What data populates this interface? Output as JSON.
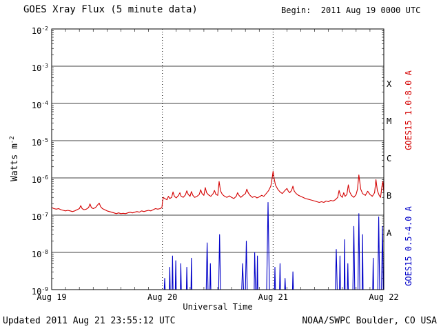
{
  "header": {
    "title": "GOES Xray Flux (5 minute data)",
    "begin": "Begin:  2011 Aug 19 0000 UTC"
  },
  "footer": {
    "updated": "Updated 2011 Aug 21 23:55:12 UTC",
    "credit": "NOAA/SWPC Boulder, CO USA"
  },
  "axes": {
    "y_title_text": "Watts m",
    "y_title_sup": "-2",
    "x_title": "Universal Time"
  },
  "chart_data": {
    "type": "line",
    "title": "GOES Xray Flux (5 minute data)",
    "xlabel": "Universal Time",
    "ylabel": "Watts m^-2",
    "x_range_hours": [
      0,
      72
    ],
    "x_ticks": [
      {
        "hour": 0,
        "label": "Aug 19"
      },
      {
        "hour": 24,
        "label": "Aug 20"
      },
      {
        "hour": 48,
        "label": "Aug 21"
      },
      {
        "hour": 72,
        "label": "Aug 22"
      }
    ],
    "y_log_range": [
      -9,
      -2
    ],
    "y_tick_exponents": [
      -2,
      -3,
      -4,
      -5,
      -6,
      -7,
      -8,
      -9
    ],
    "day_boundaries_hours": [
      24,
      48
    ],
    "flare_classes": [
      {
        "label": "X",
        "center_exponent": -3.5
      },
      {
        "label": "M",
        "center_exponent": -4.5
      },
      {
        "label": "C",
        "center_exponent": -5.5
      },
      {
        "label": "B",
        "center_exponent": -6.5
      },
      {
        "label": "A",
        "center_exponent": -7.5
      }
    ],
    "colors": {
      "long_channel": "#d40000",
      "short_channel": "#0000c8",
      "grid": "#000000"
    },
    "legend_position": "right-rotated",
    "grid": true,
    "series": [
      {
        "name": "GOES15 1.0-8.0 A",
        "color": "#d40000",
        "points": [
          [
            0,
            1.6e-07
          ],
          [
            0.5,
            1.5e-07
          ],
          [
            1,
            1.45e-07
          ],
          [
            1.5,
            1.5e-07
          ],
          [
            2,
            1.4e-07
          ],
          [
            2.5,
            1.35e-07
          ],
          [
            3,
            1.3e-07
          ],
          [
            3.5,
            1.35e-07
          ],
          [
            4,
            1.3e-07
          ],
          [
            4.5,
            1.25e-07
          ],
          [
            5,
            1.3e-07
          ],
          [
            5.5,
            1.4e-07
          ],
          [
            6,
            1.5e-07
          ],
          [
            6.3,
            1.8e-07
          ],
          [
            6.6,
            1.5e-07
          ],
          [
            7,
            1.4e-07
          ],
          [
            7.5,
            1.45e-07
          ],
          [
            8,
            1.6e-07
          ],
          [
            8.3,
            2e-07
          ],
          [
            8.6,
            1.6e-07
          ],
          [
            9,
            1.5e-07
          ],
          [
            9.5,
            1.6e-07
          ],
          [
            10,
            1.9e-07
          ],
          [
            10.3,
            2.1e-07
          ],
          [
            10.6,
            1.7e-07
          ],
          [
            11,
            1.5e-07
          ],
          [
            11.5,
            1.4e-07
          ],
          [
            12,
            1.3e-07
          ],
          [
            12.5,
            1.25e-07
          ],
          [
            13,
            1.2e-07
          ],
          [
            13.5,
            1.15e-07
          ],
          [
            14,
            1.1e-07
          ],
          [
            14.5,
            1.15e-07
          ],
          [
            15,
            1.1e-07
          ],
          [
            15.5,
            1.12e-07
          ],
          [
            16,
            1.1e-07
          ],
          [
            16.5,
            1.15e-07
          ],
          [
            17,
            1.2e-07
          ],
          [
            17.5,
            1.15e-07
          ],
          [
            18,
            1.2e-07
          ],
          [
            18.5,
            1.25e-07
          ],
          [
            19,
            1.2e-07
          ],
          [
            19.5,
            1.3e-07
          ],
          [
            20,
            1.25e-07
          ],
          [
            20.5,
            1.3e-07
          ],
          [
            21,
            1.35e-07
          ],
          [
            21.5,
            1.3e-07
          ],
          [
            22,
            1.4e-07
          ],
          [
            22.5,
            1.5e-07
          ],
          [
            23,
            1.45e-07
          ],
          [
            23.5,
            1.5e-07
          ],
          [
            23.9,
            1.6e-07
          ],
          [
            24,
            2.2e-07
          ],
          [
            24.2,
            3e-07
          ],
          [
            24.5,
            2.8e-07
          ],
          [
            25,
            2.6e-07
          ],
          [
            25.3,
            3.2e-07
          ],
          [
            25.6,
            2.8e-07
          ],
          [
            26,
            3e-07
          ],
          [
            26.3,
            4.2e-07
          ],
          [
            26.6,
            3.2e-07
          ],
          [
            27,
            2.9e-07
          ],
          [
            27.5,
            3.4e-07
          ],
          [
            27.8,
            4e-07
          ],
          [
            28,
            3.3e-07
          ],
          [
            28.5,
            3e-07
          ],
          [
            29,
            3.5e-07
          ],
          [
            29.3,
            4.5e-07
          ],
          [
            29.6,
            3.6e-07
          ],
          [
            30,
            3.2e-07
          ],
          [
            30.3,
            4.3e-07
          ],
          [
            30.6,
            3.4e-07
          ],
          [
            31,
            3e-07
          ],
          [
            31.5,
            3.2e-07
          ],
          [
            32,
            3.6e-07
          ],
          [
            32.3,
            4.8e-07
          ],
          [
            32.6,
            3.8e-07
          ],
          [
            33,
            3.4e-07
          ],
          [
            33.3,
            5.5e-07
          ],
          [
            33.6,
            4e-07
          ],
          [
            34,
            3.5e-07
          ],
          [
            34.5,
            3.2e-07
          ],
          [
            35,
            3.8e-07
          ],
          [
            35.3,
            4.6e-07
          ],
          [
            35.6,
            3.6e-07
          ],
          [
            36,
            3.4e-07
          ],
          [
            36.3,
            8e-07
          ],
          [
            36.6,
            4.5e-07
          ],
          [
            37,
            3.6e-07
          ],
          [
            37.5,
            3.2e-07
          ],
          [
            38,
            3e-07
          ],
          [
            38.5,
            3.3e-07
          ],
          [
            39,
            3e-07
          ],
          [
            39.5,
            2.8e-07
          ],
          [
            40,
            3.2e-07
          ],
          [
            40.3,
            4e-07
          ],
          [
            40.6,
            3.4e-07
          ],
          [
            41,
            3e-07
          ],
          [
            41.5,
            3.4e-07
          ],
          [
            42,
            3.8e-07
          ],
          [
            42.3,
            5e-07
          ],
          [
            42.6,
            4e-07
          ],
          [
            43,
            3.4e-07
          ],
          [
            43.5,
            3e-07
          ],
          [
            44,
            3.2e-07
          ],
          [
            44.5,
            2.9e-07
          ],
          [
            45,
            3.1e-07
          ],
          [
            45.5,
            3.4e-07
          ],
          [
            46,
            3.2e-07
          ],
          [
            46.5,
            3.8e-07
          ],
          [
            47,
            4.5e-07
          ],
          [
            47.5,
            6e-07
          ],
          [
            47.8,
            1e-06
          ],
          [
            48,
            1.5e-06
          ],
          [
            48.2,
            1e-06
          ],
          [
            48.5,
            6.5e-07
          ],
          [
            49,
            5e-07
          ],
          [
            49.5,
            4.2e-07
          ],
          [
            50,
            3.8e-07
          ],
          [
            50.5,
            4.5e-07
          ],
          [
            51,
            5.2e-07
          ],
          [
            51.3,
            4.4e-07
          ],
          [
            51.6,
            4e-07
          ],
          [
            52,
            4.6e-07
          ],
          [
            52.3,
            6e-07
          ],
          [
            52.6,
            4.4e-07
          ],
          [
            53,
            3.8e-07
          ],
          [
            53.5,
            3.4e-07
          ],
          [
            54,
            3.2e-07
          ],
          [
            54.5,
            3e-07
          ],
          [
            55,
            2.8e-07
          ],
          [
            55.5,
            2.7e-07
          ],
          [
            56,
            2.6e-07
          ],
          [
            56.5,
            2.5e-07
          ],
          [
            57,
            2.4e-07
          ],
          [
            57.5,
            2.3e-07
          ],
          [
            58,
            2.2e-07
          ],
          [
            58.5,
            2.3e-07
          ],
          [
            59,
            2.2e-07
          ],
          [
            59.5,
            2.4e-07
          ],
          [
            60,
            2.3e-07
          ],
          [
            60.5,
            2.5e-07
          ],
          [
            61,
            2.4e-07
          ],
          [
            61.5,
            2.6e-07
          ],
          [
            62,
            3e-07
          ],
          [
            62.3,
            4.6e-07
          ],
          [
            62.6,
            3.4e-07
          ],
          [
            63,
            3e-07
          ],
          [
            63.3,
            4e-07
          ],
          [
            63.6,
            3.2e-07
          ],
          [
            64,
            3.6e-07
          ],
          [
            64.3,
            6.5e-07
          ],
          [
            64.6,
            4.2e-07
          ],
          [
            65,
            3.4e-07
          ],
          [
            65.5,
            3e-07
          ],
          [
            66,
            3.6e-07
          ],
          [
            66.3,
            5e-07
          ],
          [
            66.6,
            1.2e-06
          ],
          [
            67,
            5e-07
          ],
          [
            67.4,
            3.8e-07
          ],
          [
            68,
            3.4e-07
          ],
          [
            68.5,
            4.4e-07
          ],
          [
            69,
            3.6e-07
          ],
          [
            69.5,
            3.2e-07
          ],
          [
            70,
            4e-07
          ],
          [
            70.3,
            9e-07
          ],
          [
            70.6,
            4.6e-07
          ],
          [
            71,
            3.4e-07
          ],
          [
            71.3,
            3e-07
          ],
          [
            71.6,
            6e-07
          ],
          [
            71.8,
            8e-07
          ],
          [
            72,
            4e-07
          ]
        ]
      },
      {
        "name": "GOES15 0.5-4.0 A",
        "color": "#0000c8",
        "points": [
          [
            24,
            9e-10
          ],
          [
            24.4,
            9e-10
          ],
          [
            24.5,
            2e-09
          ],
          [
            24.6,
            9e-10
          ],
          [
            25.5,
            9e-10
          ],
          [
            25.6,
            4e-09
          ],
          [
            25.7,
            9e-10
          ],
          [
            26.1,
            9e-10
          ],
          [
            26.2,
            8e-09
          ],
          [
            26.3,
            9e-10
          ],
          [
            26.8,
            9e-10
          ],
          [
            26.9,
            6e-09
          ],
          [
            27.0,
            9e-10
          ],
          [
            27.9,
            9e-10
          ],
          [
            28.0,
            5e-09
          ],
          [
            28.1,
            9e-10
          ],
          [
            29.2,
            9e-10
          ],
          [
            29.3,
            4e-09
          ],
          [
            29.4,
            9e-10
          ],
          [
            30.2,
            9e-10
          ],
          [
            30.3,
            7e-09
          ],
          [
            30.4,
            9e-10
          ],
          [
            31,
            9e-10
          ],
          [
            33.5,
            9e-10
          ],
          [
            33.7,
            1.8e-08
          ],
          [
            33.9,
            9e-10
          ],
          [
            34.3,
            9e-10
          ],
          [
            34.4,
            5e-09
          ],
          [
            34.5,
            9e-10
          ],
          [
            36.2,
            9e-10
          ],
          [
            36.4,
            3e-08
          ],
          [
            36.6,
            9e-10
          ],
          [
            38,
            9e-10
          ],
          [
            41.2,
            9e-10
          ],
          [
            41.4,
            5e-09
          ],
          [
            41.6,
            9e-10
          ],
          [
            42.0,
            9e-10
          ],
          [
            42.2,
            2e-08
          ],
          [
            42.4,
            9e-10
          ],
          [
            43.9,
            9e-10
          ],
          [
            44.0,
            1e-08
          ],
          [
            44.2,
            9e-10
          ],
          [
            44.5,
            9e-10
          ],
          [
            44.6,
            8e-09
          ],
          [
            44.7,
            9e-10
          ],
          [
            46.6,
            9e-10
          ],
          [
            46.9,
            2.2e-07
          ],
          [
            47.2,
            9e-10
          ],
          [
            48.3,
            9e-10
          ],
          [
            48.4,
            4e-09
          ],
          [
            48.5,
            9e-10
          ],
          [
            49.4,
            9e-10
          ],
          [
            49.5,
            5e-09
          ],
          [
            49.6,
            9e-10
          ],
          [
            50.5,
            9e-10
          ],
          [
            50.6,
            2e-09
          ],
          [
            50.7,
            9e-10
          ],
          [
            52.2,
            9e-10
          ],
          [
            52.3,
            3e-09
          ],
          [
            52.4,
            9e-10
          ],
          [
            55,
            9e-10
          ],
          [
            61.5,
            9e-10
          ],
          [
            61.7,
            1.2e-08
          ],
          [
            61.9,
            9e-10
          ],
          [
            62.4,
            9e-10
          ],
          [
            62.5,
            8e-09
          ],
          [
            62.6,
            9e-10
          ],
          [
            63.4,
            9e-10
          ],
          [
            63.5,
            2.2e-08
          ],
          [
            63.6,
            9e-10
          ],
          [
            64.1,
            9e-10
          ],
          [
            64.2,
            5e-09
          ],
          [
            64.3,
            9e-10
          ],
          [
            65.3,
            9e-10
          ],
          [
            65.5,
            5e-08
          ],
          [
            65.7,
            9e-10
          ],
          [
            66.4,
            9e-10
          ],
          [
            66.6,
            1.1e-07
          ],
          [
            66.8,
            9e-10
          ],
          [
            67.3,
            9e-10
          ],
          [
            67.4,
            3e-08
          ],
          [
            67.5,
            9e-10
          ],
          [
            69.6,
            9e-10
          ],
          [
            69.7,
            7e-09
          ],
          [
            69.8,
            9e-10
          ],
          [
            70.7,
            9e-10
          ],
          [
            70.9,
            9e-08
          ],
          [
            71.1,
            9e-10
          ],
          [
            71.5,
            9e-10
          ],
          [
            71.7,
            5e-08
          ],
          [
            71.9,
            9e-10
          ],
          [
            72,
            9e-10
          ]
        ]
      }
    ]
  }
}
